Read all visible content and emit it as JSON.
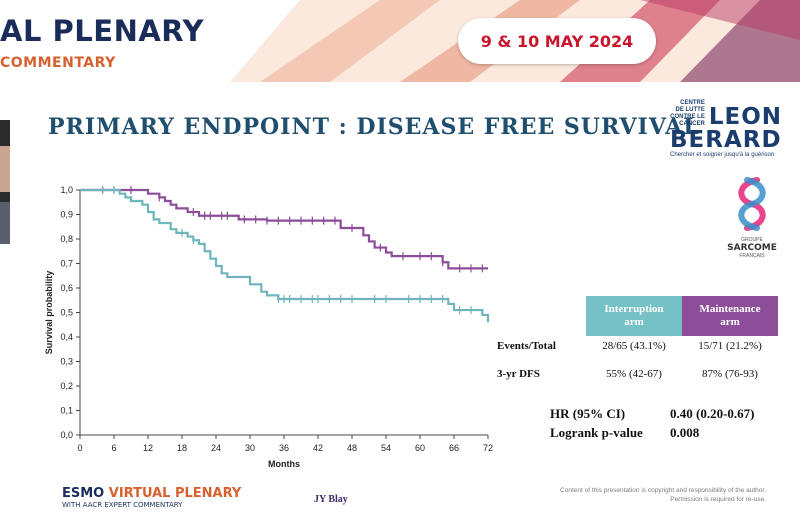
{
  "header": {
    "event_title": "AL PLENARY",
    "event_subtitle": "COMMENTARY",
    "date": "9 & 10 MAY 2024"
  },
  "slide": {
    "title": "PRIMARY ENDPOINT : DISEASE FREE SURVIVAL"
  },
  "logos": {
    "leon_berard": {
      "small_lines": [
        "CENTRE",
        "DE LUTTE",
        "CONTRE LE CANCER"
      ],
      "word1": "LEON",
      "word2": "BERARD",
      "tagline": "Chercher et soigner jusqu'à la guérison"
    },
    "sarcome": {
      "caption_top": "GROUPE",
      "name": "SARCOME",
      "caption_bottom": "FRANÇAIS"
    }
  },
  "chart_data": {
    "type": "line",
    "xlabel": "Months",
    "ylabel": "Survival probability",
    "xlim": [
      0,
      72
    ],
    "ylim": [
      0,
      1
    ],
    "x_ticks": [
      "0",
      "6",
      "12",
      "18",
      "24",
      "30",
      "36",
      "42",
      "48",
      "54",
      "60",
      "66",
      "72"
    ],
    "y_ticks": [
      "0,0",
      "0,1",
      "0,2",
      "0,3",
      "0,4",
      "0,5",
      "0,6",
      "0,7",
      "0,8",
      "0,9",
      "1,0"
    ],
    "grid": false,
    "series": [
      {
        "name": "Maintenance arm",
        "color": "#8c4d99",
        "steps": [
          [
            0,
            1.0
          ],
          [
            12,
            0.985
          ],
          [
            14,
            0.97
          ],
          [
            15,
            0.955
          ],
          [
            16,
            0.94
          ],
          [
            17,
            0.925
          ],
          [
            19,
            0.91
          ],
          [
            21,
            0.895
          ],
          [
            28,
            0.88
          ],
          [
            33,
            0.875
          ],
          [
            46,
            0.845
          ],
          [
            50,
            0.815
          ],
          [
            51,
            0.79
          ],
          [
            52,
            0.765
          ],
          [
            54,
            0.745
          ],
          [
            55,
            0.73
          ],
          [
            64,
            0.705
          ],
          [
            65,
            0.68
          ],
          [
            72,
            0.68
          ]
        ],
        "censors": [
          4,
          6,
          9,
          14,
          20,
          22,
          23,
          25,
          26,
          29,
          31,
          33,
          35,
          37,
          39,
          41,
          43,
          45,
          48,
          53,
          57,
          60,
          62,
          64,
          67,
          69,
          71
        ]
      },
      {
        "name": "Interruption arm",
        "color": "#6fb6bb",
        "steps": [
          [
            0,
            1.0
          ],
          [
            7,
            0.985
          ],
          [
            8,
            0.97
          ],
          [
            9,
            0.955
          ],
          [
            11,
            0.94
          ],
          [
            12,
            0.91
          ],
          [
            13,
            0.88
          ],
          [
            14,
            0.865
          ],
          [
            16,
            0.84
          ],
          [
            17,
            0.825
          ],
          [
            19,
            0.81
          ],
          [
            20,
            0.795
          ],
          [
            21,
            0.78
          ],
          [
            22,
            0.75
          ],
          [
            23,
            0.72
          ],
          [
            24,
            0.69
          ],
          [
            25,
            0.66
          ],
          [
            26,
            0.645
          ],
          [
            30,
            0.615
          ],
          [
            32,
            0.585
          ],
          [
            33,
            0.57
          ],
          [
            35,
            0.555
          ],
          [
            65,
            0.535
          ],
          [
            66,
            0.51
          ],
          [
            71,
            0.49
          ],
          [
            72,
            0.46
          ]
        ],
        "censors": [
          4,
          6,
          18,
          20,
          35,
          36,
          37,
          39,
          41,
          42,
          44,
          46,
          48,
          52,
          54,
          58,
          60,
          62,
          64,
          67,
          69
        ]
      }
    ]
  },
  "table": {
    "columns": [
      {
        "line1": "Interruption",
        "line2": "arm"
      },
      {
        "line1": "Maintenance",
        "line2": "arm"
      }
    ],
    "rows": [
      {
        "label": "Events/Total",
        "values": [
          "28/65 (43.1%)",
          "15/71 (21.2%)"
        ]
      },
      {
        "label": "3-yr DFS",
        "values": [
          "55% (42-67)",
          "87% (76-93)"
        ]
      }
    ],
    "hr_label": "HR (95% CI)",
    "hr_value": "0.40 (0.20-0.67)",
    "logrank_label": "Logrank p-value",
    "logrank_value": "0.008"
  },
  "footer": {
    "logo_word1": "ESMO",
    "logo_word2": "VIRTUAL PLENARY",
    "logo_sub": "WITH AACR EXPERT COMMENTARY",
    "presenter": "JY Blay",
    "copyright_line1": "Content of this presentation is copyright and responsibility of the author.",
    "copyright_line2": "Permission is required for re-use."
  }
}
